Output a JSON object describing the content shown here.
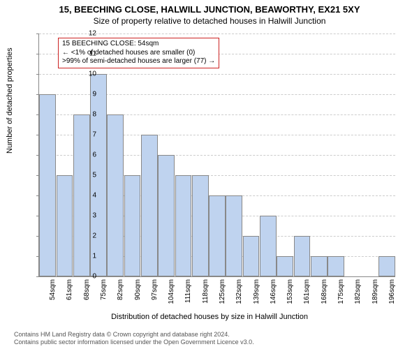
{
  "chart": {
    "type": "bar",
    "title": "15, BEECHING CLOSE, HALWILL JUNCTION, BEAWORTHY, EX21 5XY",
    "subtitle": "Size of property relative to detached houses in Halwill Junction",
    "ylabel": "Number of detached properties",
    "xlabel": "Distribution of detached houses by size in Halwill Junction",
    "background_color": "#ffffff",
    "bar_fill": "#bfd3ef",
    "bar_border": "#888888",
    "grid_color": "#cccccc",
    "annotation_border": "#cc2222",
    "ylim": [
      0,
      12
    ],
    "ytick_step": 1,
    "categories": [
      "54sqm",
      "61sqm",
      "68sqm",
      "75sqm",
      "82sqm",
      "90sqm",
      "97sqm",
      "104sqm",
      "111sqm",
      "118sqm",
      "125sqm",
      "132sqm",
      "139sqm",
      "146sqm",
      "153sqm",
      "161sqm",
      "168sqm",
      "175sqm",
      "182sqm",
      "189sqm",
      "196sqm"
    ],
    "values": [
      9,
      5,
      8,
      10,
      8,
      5,
      7,
      6,
      5,
      5,
      4,
      4,
      2,
      3,
      1,
      2,
      1,
      1,
      0,
      0,
      1
    ],
    "annotation": {
      "line1": "15 BEECHING CLOSE: 54sqm",
      "line2": "← <1% of detached houses are smaller (0)",
      "line3": ">99% of semi-detached houses are larger (77) →"
    },
    "footer": {
      "line1": "Contains HM Land Registry data © Crown copyright and database right 2024.",
      "line2": "Contains public sector information licensed under the Open Government Licence v3.0."
    }
  }
}
